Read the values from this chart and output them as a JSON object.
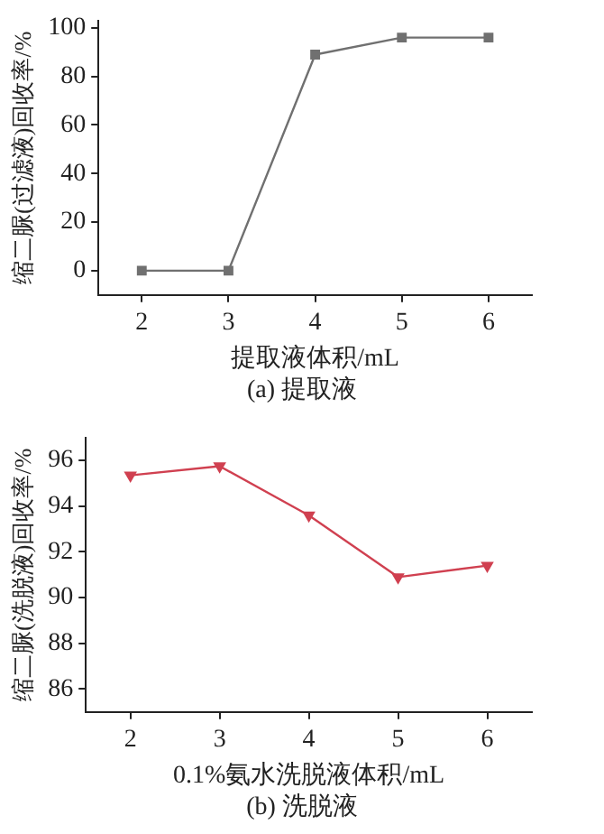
{
  "chart_data": [
    {
      "type": "line",
      "title": "(a) 提取液",
      "xlabel": "提取液体积/mL",
      "ylabel": "缩二脲(过滤液)回收率/%",
      "x": [
        2,
        3,
        4,
        5,
        6
      ],
      "series": [
        {
          "color": "#707070",
          "values": [
            0,
            0,
            89,
            96,
            96
          ]
        }
      ],
      "xlim": [
        1.5,
        6.5
      ],
      "xticks": [
        2,
        3,
        4,
        5,
        6
      ],
      "ylim": [
        -10,
        103
      ],
      "yticks": [
        0,
        20,
        40,
        60,
        80,
        100
      ],
      "marker": "square",
      "grid": false,
      "legend": false
    },
    {
      "type": "line",
      "title": "(b) 洗脱液",
      "xlabel": "0.1%氨水洗脱液体积/mL",
      "ylabel": "缩二脲(洗脱液)回收率/%",
      "x": [
        2,
        3,
        4,
        5,
        6
      ],
      "series": [
        {
          "color": "#d04050",
          "values": [
            95.35,
            95.75,
            93.6,
            90.9,
            91.4
          ]
        }
      ],
      "xlim": [
        1.5,
        6.5
      ],
      "xticks": [
        2,
        3,
        4,
        5,
        6
      ],
      "ylim": [
        85,
        97
      ],
      "yticks": [
        86,
        88,
        90,
        92,
        94,
        96
      ],
      "marker": "triangle",
      "grid": false,
      "legend": false
    }
  ]
}
